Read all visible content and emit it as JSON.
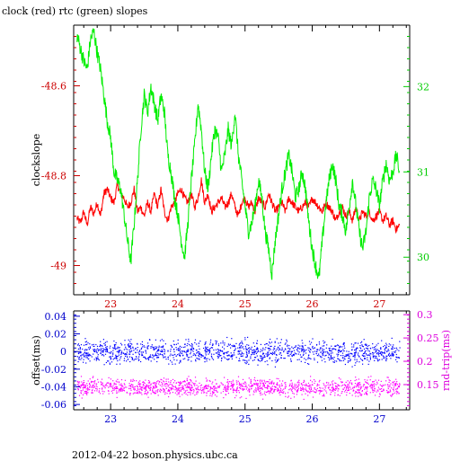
{
  "chart_data": [
    {
      "type": "line",
      "title": "clock (red) rtc (green) slopes",
      "xlabel": "",
      "ylabel": "clockslope",
      "y2label": "",
      "xlim": [
        22.45,
        27.45
      ],
      "ylim": [
        -49.065,
        -48.465
      ],
      "y2lim": [
        29.56,
        32.72
      ],
      "xticks": [
        "23",
        "24",
        "25",
        "26",
        "27"
      ],
      "yticks": [
        "-48.6",
        "-48.8",
        "-49"
      ],
      "y2ticks": [
        "32",
        "31",
        "30"
      ],
      "colors": {
        "axis": "#000000",
        "left_axis": "#cc0000",
        "right_axis": "#00cc00"
      },
      "series": [
        {
          "axis": "left",
          "color": "#ff0000",
          "x": [
            22.5,
            22.55,
            22.6,
            22.65,
            22.7,
            22.75,
            22.8,
            22.85,
            22.9,
            22.95,
            23.0,
            23.05,
            23.1,
            23.15,
            23.2,
            23.25,
            23.3,
            23.35,
            23.4,
            23.45,
            23.5,
            23.55,
            23.6,
            23.65,
            23.7,
            23.75,
            23.8,
            23.85,
            23.9,
            23.95,
            24.0,
            24.05,
            24.1,
            24.15,
            24.2,
            24.25,
            24.3,
            24.35,
            24.4,
            24.45,
            24.5,
            24.55,
            24.6,
            24.65,
            24.7,
            24.75,
            24.8,
            24.85,
            24.9,
            24.95,
            25.0,
            25.05,
            25.1,
            25.15,
            25.2,
            25.25,
            25.3,
            25.35,
            25.4,
            25.45,
            25.5,
            25.55,
            25.6,
            25.65,
            25.7,
            25.75,
            25.8,
            25.85,
            25.9,
            25.95,
            26.0,
            26.05,
            26.1,
            26.15,
            26.2,
            26.25,
            26.3,
            26.35,
            26.4,
            26.45,
            26.5,
            26.55,
            26.6,
            26.65,
            26.7,
            26.75,
            26.8,
            26.85,
            26.9,
            26.95,
            27.0,
            27.05,
            27.1,
            27.15,
            27.2,
            27.25,
            27.3
          ],
          "y": [
            -48.895,
            -48.905,
            -48.88,
            -48.91,
            -48.87,
            -48.885,
            -48.86,
            -48.89,
            -48.84,
            -48.83,
            -48.85,
            -48.86,
            -48.82,
            -48.84,
            -48.85,
            -48.87,
            -48.86,
            -48.83,
            -48.88,
            -48.87,
            -48.89,
            -48.86,
            -48.88,
            -48.84,
            -48.87,
            -48.83,
            -48.88,
            -48.9,
            -48.87,
            -48.86,
            -48.84,
            -48.83,
            -48.85,
            -48.86,
            -48.84,
            -48.87,
            -48.85,
            -48.81,
            -48.86,
            -48.84,
            -48.88,
            -48.87,
            -48.86,
            -48.85,
            -48.87,
            -48.86,
            -48.84,
            -48.87,
            -48.89,
            -48.86,
            -48.85,
            -48.87,
            -48.86,
            -48.88,
            -48.85,
            -48.86,
            -48.87,
            -48.84,
            -48.86,
            -48.88,
            -48.87,
            -48.86,
            -48.88,
            -48.85,
            -48.86,
            -48.87,
            -48.88,
            -48.87,
            -48.86,
            -48.87,
            -48.85,
            -48.86,
            -48.87,
            -48.88,
            -48.86,
            -48.87,
            -48.88,
            -48.9,
            -48.88,
            -48.87,
            -48.89,
            -48.88,
            -48.9,
            -48.87,
            -48.9,
            -48.88,
            -48.89,
            -48.88,
            -48.9,
            -48.89,
            -48.88,
            -48.9,
            -48.89,
            -48.91,
            -48.9,
            -48.92,
            -48.91
          ]
        },
        {
          "axis": "right",
          "color": "#00ee00",
          "x": [
            22.5,
            22.55,
            22.6,
            22.65,
            22.7,
            22.75,
            22.8,
            22.85,
            22.9,
            22.95,
            23.0,
            23.05,
            23.1,
            23.15,
            23.2,
            23.25,
            23.3,
            23.35,
            23.4,
            23.45,
            23.5,
            23.55,
            23.6,
            23.65,
            23.7,
            23.75,
            23.8,
            23.85,
            23.9,
            23.95,
            24.0,
            24.05,
            24.1,
            24.15,
            24.2,
            24.25,
            24.3,
            24.35,
            24.4,
            24.45,
            24.5,
            24.55,
            24.6,
            24.65,
            24.7,
            24.75,
            24.8,
            24.85,
            24.9,
            24.95,
            25.0,
            25.05,
            25.1,
            25.15,
            25.2,
            25.25,
            25.3,
            25.35,
            25.4,
            25.45,
            25.5,
            25.55,
            25.6,
            25.65,
            25.7,
            25.75,
            25.8,
            25.85,
            25.9,
            25.95,
            26.0,
            26.05,
            26.1,
            26.15,
            26.2,
            26.25,
            26.3,
            26.35,
            26.4,
            26.45,
            26.5,
            26.55,
            26.6,
            26.65,
            26.7,
            26.75,
            26.8,
            26.85,
            26.9,
            26.95,
            27.0,
            27.05,
            27.1,
            27.15,
            27.2,
            27.25,
            27.3
          ],
          "y": [
            32.6,
            32.45,
            32.3,
            32.2,
            32.55,
            32.65,
            32.4,
            32.2,
            31.9,
            31.6,
            31.4,
            31.0,
            30.9,
            30.8,
            30.5,
            30.2,
            29.95,
            30.4,
            30.9,
            31.5,
            31.9,
            31.7,
            32.0,
            31.8,
            31.6,
            31.9,
            31.7,
            31.2,
            31.0,
            30.7,
            30.5,
            30.2,
            30.0,
            30.4,
            30.9,
            31.3,
            31.8,
            31.5,
            31.0,
            30.8,
            31.2,
            31.5,
            31.4,
            31.0,
            31.2,
            31.5,
            31.3,
            31.7,
            31.2,
            30.9,
            30.6,
            30.3,
            30.4,
            30.6,
            30.9,
            30.7,
            30.3,
            30.1,
            29.8,
            30.2,
            30.5,
            30.8,
            31.0,
            31.2,
            31.0,
            30.7,
            30.8,
            31.0,
            30.8,
            30.4,
            30.1,
            29.9,
            29.75,
            30.2,
            30.6,
            30.9,
            31.1,
            30.9,
            30.6,
            30.5,
            30.3,
            30.6,
            30.9,
            30.6,
            30.3,
            30.1,
            30.3,
            30.7,
            30.9,
            30.8,
            30.6,
            30.9,
            31.1,
            30.9,
            31.0,
            31.2,
            31.0
          ]
        }
      ]
    },
    {
      "type": "scatter",
      "title": "",
      "xlabel": "",
      "ylabel": "offset(ms)",
      "y2label": "rnd-trip(ms)",
      "xlim": [
        22.45,
        27.45
      ],
      "ylim": [
        -0.066,
        0.046
      ],
      "y2lim": [
        0.096,
        0.308
      ],
      "xticks": [
        "23",
        "24",
        "25",
        "26",
        "27"
      ],
      "yticks": [
        "0.04",
        "0.02",
        "0",
        "-0.02",
        "-0.04",
        "-0.06"
      ],
      "y2ticks": [
        "0.3",
        "0.25",
        "0.2",
        "0.15"
      ],
      "colors": {
        "axis": "#000000",
        "left_axis": "#0000cc",
        "right_axis": "#dd00dd"
      },
      "series": [
        {
          "axis": "left",
          "color": "#0000ff",
          "x_range": [
            22.5,
            27.3
          ],
          "center": 0.0,
          "band": [
            -0.012,
            0.012
          ]
        },
        {
          "axis": "right",
          "color": "#ff00ff",
          "x_range": [
            22.5,
            27.3
          ],
          "center": 0.145,
          "band": [
            0.128,
            0.162
          ]
        }
      ]
    }
  ],
  "footer": "2012-04-22 boson.physics.ubc.ca"
}
